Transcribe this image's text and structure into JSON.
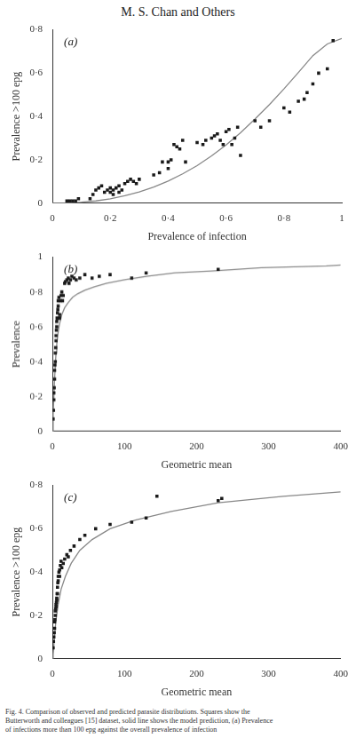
{
  "chart_data": [
    {
      "type": "scatter",
      "title": "M. S. Chan and Others",
      "annotation": "(a)",
      "x_label": "Prevalence of infection",
      "y_label": "Prevalence >100 epg",
      "xlim": [
        0,
        1
      ],
      "ylim": [
        0,
        0.8
      ],
      "xticks": [
        0,
        {
          "value": 0.2,
          "label": "0·2"
        },
        {
          "value": 0.4,
          "label": "0·4"
        },
        {
          "value": 0.6,
          "label": "0·6"
        },
        {
          "value": 0.8,
          "label": "0·8"
        },
        1
      ],
      "yticks": [
        0,
        {
          "value": 0.2,
          "label": "0·2"
        },
        {
          "value": 0.4,
          "label": "0·4"
        },
        {
          "value": 0.6,
          "label": "0·6"
        },
        {
          "value": 0.8,
          "label": "0·8"
        }
      ],
      "grid": false,
      "series": [
        {
          "type": "scatter",
          "marker": "square",
          "color": "#1a1a1a",
          "x": [
            0.05,
            0.06,
            0.07,
            0.08,
            0.09,
            0.13,
            0.14,
            0.15,
            0.16,
            0.17,
            0.18,
            0.19,
            0.2,
            0.2,
            0.21,
            0.21,
            0.22,
            0.23,
            0.23,
            0.24,
            0.25,
            0.26,
            0.27,
            0.28,
            0.29,
            0.3,
            0.35,
            0.37,
            0.38,
            0.4,
            0.4,
            0.41,
            0.42,
            0.43,
            0.44,
            0.45,
            0.46,
            0.5,
            0.52,
            0.53,
            0.55,
            0.56,
            0.57,
            0.58,
            0.59,
            0.6,
            0.61,
            0.62,
            0.63,
            0.64,
            0.65,
            0.7,
            0.72,
            0.75,
            0.8,
            0.82,
            0.85,
            0.87,
            0.88,
            0.9,
            0.92,
            0.95,
            0.97
          ],
          "values": [
            0.01,
            0.01,
            0.01,
            0.01,
            0.02,
            0.02,
            0.04,
            0.06,
            0.07,
            0.08,
            0.05,
            0.06,
            0.05,
            0.07,
            0.04,
            0.06,
            0.07,
            0.05,
            0.08,
            0.06,
            0.09,
            0.1,
            0.11,
            0.1,
            0.09,
            0.11,
            0.13,
            0.14,
            0.19,
            0.19,
            0.16,
            0.2,
            0.27,
            0.26,
            0.25,
            0.29,
            0.19,
            0.28,
            0.27,
            0.29,
            0.3,
            0.31,
            0.32,
            0.29,
            0.27,
            0.33,
            0.34,
            0.27,
            0.3,
            0.35,
            0.22,
            0.38,
            0.35,
            0.38,
            0.44,
            0.42,
            0.47,
            0.48,
            0.51,
            0.55,
            0.6,
            0.62,
            0.75
          ]
        },
        {
          "type": "line",
          "line_style": "solid",
          "color": "#888888",
          "x": [
            0.0,
            0.05,
            0.1,
            0.15,
            0.2,
            0.25,
            0.3,
            0.35,
            0.4,
            0.45,
            0.5,
            0.55,
            0.6,
            0.65,
            0.7,
            0.75,
            0.8,
            0.85,
            0.9,
            0.95,
            1.0
          ],
          "values": [
            0.0,
            0.001,
            0.004,
            0.01,
            0.02,
            0.034,
            0.052,
            0.074,
            0.102,
            0.135,
            0.173,
            0.218,
            0.268,
            0.325,
            0.388,
            0.455,
            0.527,
            0.603,
            0.681,
            0.735,
            0.76
          ]
        }
      ]
    },
    {
      "type": "scatter",
      "annotation": "(b)",
      "x_label": "Geometric mean",
      "y_label": "Prevalence",
      "xlim": [
        0,
        400
      ],
      "ylim": [
        0,
        1
      ],
      "xticks": [
        0,
        100,
        200,
        300,
        400
      ],
      "yticks": [
        0,
        {
          "value": 0.2,
          "label": "0·2"
        },
        {
          "value": 0.4,
          "label": "0·4"
        },
        {
          "value": 0.6,
          "label": "0·6"
        },
        {
          "value": 0.8,
          "label": "0·8"
        },
        1
      ],
      "grid": false,
      "series": [
        {
          "type": "scatter",
          "marker": "square",
          "color": "#1a1a1a",
          "x": [
            1,
            1.5,
            2,
            2,
            2.5,
            3,
            3,
            3.5,
            4,
            4,
            4.5,
            5,
            5,
            5.5,
            6,
            6,
            6.5,
            7,
            7,
            7.5,
            8,
            8,
            9,
            10,
            10,
            11,
            12,
            13,
            14,
            15,
            17,
            18,
            20,
            22,
            23,
            25,
            27,
            30,
            33,
            38,
            45,
            55,
            65,
            80,
            110,
            130,
            230
          ],
          "values": [
            0.07,
            0.12,
            0.18,
            0.22,
            0.25,
            0.3,
            0.35,
            0.38,
            0.4,
            0.45,
            0.48,
            0.52,
            0.55,
            0.58,
            0.6,
            0.63,
            0.65,
            0.65,
            0.68,
            0.7,
            0.72,
            0.75,
            0.77,
            0.65,
            0.67,
            0.75,
            0.78,
            0.8,
            0.75,
            0.78,
            0.85,
            0.86,
            0.87,
            0.88,
            0.85,
            0.87,
            0.89,
            0.88,
            0.87,
            0.88,
            0.9,
            0.88,
            0.89,
            0.9,
            0.88,
            0.91,
            0.93
          ]
        },
        {
          "type": "line",
          "line_style": "solid",
          "color": "#888888",
          "x": [
            0,
            1,
            2,
            3,
            4,
            5,
            6,
            8,
            10,
            13,
            17,
            22,
            28,
            35,
            45,
            58,
            75,
            100,
            130,
            170,
            220,
            290,
            380,
            400
          ],
          "values": [
            0.0,
            0.1,
            0.2,
            0.3,
            0.38,
            0.45,
            0.5,
            0.57,
            0.62,
            0.67,
            0.71,
            0.74,
            0.77,
            0.79,
            0.81,
            0.83,
            0.85,
            0.87,
            0.89,
            0.91,
            0.92,
            0.94,
            0.95,
            0.955
          ]
        }
      ]
    },
    {
      "type": "scatter",
      "annotation": "(c)",
      "x_label": "Geometric mean",
      "y_label": "Prevalence >100 epg",
      "xlim": [
        0,
        400
      ],
      "ylim": [
        0,
        0.8
      ],
      "xticks": [
        0,
        100,
        200,
        300,
        400
      ],
      "yticks": [
        0,
        {
          "value": 0.2,
          "label": "0·2"
        },
        {
          "value": 0.4,
          "label": "0·4"
        },
        {
          "value": 0.6,
          "label": "0·6"
        },
        {
          "value": 0.8,
          "label": "0·8"
        }
      ],
      "grid": false,
      "caption": "Fig. 4. Comparison of observed and predicted parasite distributions. Squares show the\nButterworth and colleagues [15] dataset, solid line shows the model prediction, (a) Prevalence\nof infections more than 100 epg against the overall prevalence of infection",
      "series": [
        {
          "type": "scatter",
          "marker": "square",
          "color": "#1a1a1a",
          "x": [
            1,
            1.5,
            2,
            2.5,
            3,
            3,
            3.5,
            4,
            4,
            4.5,
            5,
            5,
            5.5,
            6,
            6,
            6.5,
            7,
            7,
            7.5,
            8,
            8,
            9,
            10,
            10,
            11,
            12,
            13,
            15,
            17,
            20,
            22,
            25,
            30,
            38,
            45,
            60,
            80,
            110,
            130,
            145,
            230,
            235
          ],
          "values": [
            0.05,
            0.08,
            0.1,
            0.12,
            0.14,
            0.17,
            0.18,
            0.2,
            0.22,
            0.23,
            0.24,
            0.25,
            0.26,
            0.27,
            0.28,
            0.3,
            0.3,
            0.33,
            0.35,
            0.36,
            0.38,
            0.4,
            0.38,
            0.41,
            0.43,
            0.45,
            0.42,
            0.44,
            0.46,
            0.48,
            0.47,
            0.5,
            0.52,
            0.55,
            0.57,
            0.6,
            0.62,
            0.63,
            0.65,
            0.75,
            0.73,
            0.74
          ]
        },
        {
          "type": "line",
          "line_style": "solid",
          "color": "#888888",
          "x": [
            0,
            1,
            2,
            3,
            5,
            8,
            12,
            18,
            26,
            38,
            55,
            80,
            115,
            165,
            230,
            320,
            400
          ],
          "values": [
            0.0,
            0.02,
            0.06,
            0.11,
            0.18,
            0.25,
            0.32,
            0.38,
            0.44,
            0.5,
            0.55,
            0.6,
            0.64,
            0.68,
            0.72,
            0.75,
            0.77
          ]
        }
      ]
    }
  ]
}
